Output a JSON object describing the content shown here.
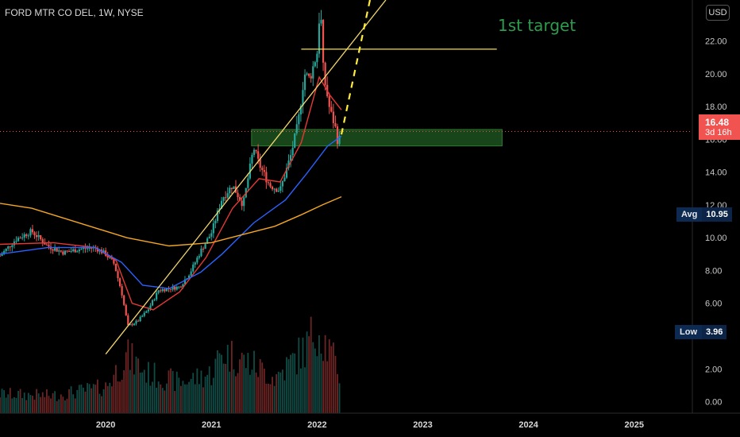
{
  "header": {
    "title": "FORD MTR CO DEL, 1W, NYSE",
    "currency_button": "USD"
  },
  "annotation": {
    "text": "1st target",
    "color": "#2e9b4e"
  },
  "price_tag": {
    "price": "16.48",
    "countdown": "3d 16h",
    "color": "#f05350"
  },
  "avg_tag": {
    "label": "Avg",
    "value": "10.95"
  },
  "low_tag": {
    "label": "Low",
    "value": "3.96"
  },
  "colors": {
    "up": "#26a69a",
    "down": "#ef5350",
    "ema_fast": "#e53935",
    "ema_mid": "#2962ff",
    "ema_slow": "#f5a623",
    "trendline": "#f5d76e",
    "target_line": "#f5e042",
    "zone": "#2e7d32"
  },
  "chart_data": {
    "type": "candlestick",
    "symbol": "FORD MTR CO DEL",
    "interval": "1W",
    "exchange": "NYSE",
    "yaxis": {
      "ticks": [
        "0.00",
        "2.00",
        "4.00",
        "6.00",
        "8.00",
        "10.00",
        "12.00",
        "14.00",
        "16.00",
        "18.00",
        "20.00",
        "22.00"
      ],
      "ylim": [
        -0.7,
        24.5
      ]
    },
    "xaxis": {
      "ticks": [
        "2020",
        "2021",
        "2022",
        "2023",
        "2024",
        "2025"
      ],
      "range": [
        2019.0,
        2025.55
      ]
    },
    "close_path": [
      [
        2019.0,
        8.9
      ],
      [
        2019.15,
        9.9
      ],
      [
        2019.3,
        10.4
      ],
      [
        2019.45,
        9.5
      ],
      [
        2019.6,
        9.1
      ],
      [
        2019.75,
        9.3
      ],
      [
        2019.9,
        9.4
      ],
      [
        2020.0,
        9.0
      ],
      [
        2020.08,
        8.4
      ],
      [
        2020.15,
        6.7
      ],
      [
        2020.21,
        4.6
      ],
      [
        2020.3,
        4.9
      ],
      [
        2020.4,
        5.6
      ],
      [
        2020.5,
        6.8
      ],
      [
        2020.6,
        6.9
      ],
      [
        2020.7,
        7.0
      ],
      [
        2020.8,
        7.9
      ],
      [
        2020.9,
        9.2
      ],
      [
        2021.0,
        10.3
      ],
      [
        2021.1,
        12.4
      ],
      [
        2021.2,
        13.2
      ],
      [
        2021.3,
        12.0
      ],
      [
        2021.4,
        15.5
      ],
      [
        2021.45,
        14.5
      ],
      [
        2021.55,
        13.2
      ],
      [
        2021.65,
        12.9
      ],
      [
        2021.75,
        15.0
      ],
      [
        2021.82,
        17.0
      ],
      [
        2021.88,
        20.0
      ],
      [
        2021.93,
        19.7
      ],
      [
        2022.0,
        21.3
      ],
      [
        2022.03,
        24.4
      ],
      [
        2022.06,
        20.0
      ],
      [
        2022.12,
        17.8
      ],
      [
        2022.17,
        16.8
      ],
      [
        2022.2,
        15.7
      ],
      [
        2022.23,
        16.48
      ]
    ],
    "volume_profile": [
      [
        2019.0,
        0.22
      ],
      [
        2019.5,
        0.2
      ],
      [
        2020.0,
        0.3
      ],
      [
        2020.2,
        0.65
      ],
      [
        2020.4,
        0.45
      ],
      [
        2020.7,
        0.35
      ],
      [
        2021.0,
        0.45
      ],
      [
        2021.1,
        0.7
      ],
      [
        2021.4,
        0.55
      ],
      [
        2021.6,
        0.4
      ],
      [
        2021.9,
        0.75
      ],
      [
        2022.0,
        1.0
      ],
      [
        2022.1,
        0.75
      ],
      [
        2022.23,
        0.4
      ]
    ],
    "series": [
      {
        "name": "",
        "type": "line",
        "role": "ema_fast",
        "points": [
          [
            2019.0,
            9.6
          ],
          [
            2019.5,
            9.7
          ],
          [
            2019.9,
            9.4
          ],
          [
            2020.1,
            8.6
          ],
          [
            2020.25,
            6.0
          ],
          [
            2020.45,
            5.6
          ],
          [
            2020.7,
            6.7
          ],
          [
            2020.95,
            8.8
          ],
          [
            2021.2,
            11.8
          ],
          [
            2021.45,
            13.6
          ],
          [
            2021.65,
            13.4
          ],
          [
            2021.85,
            15.8
          ],
          [
            2022.02,
            19.8
          ],
          [
            2022.12,
            18.7
          ],
          [
            2022.23,
            17.8
          ]
        ]
      },
      {
        "name": "",
        "type": "line",
        "role": "ema_mid",
        "points": [
          [
            2019.0,
            9.0
          ],
          [
            2019.45,
            9.4
          ],
          [
            2019.9,
            9.4
          ],
          [
            2020.15,
            8.5
          ],
          [
            2020.35,
            7.1
          ],
          [
            2020.6,
            6.9
          ],
          [
            2020.9,
            7.9
          ],
          [
            2021.1,
            9.0
          ],
          [
            2021.4,
            10.9
          ],
          [
            2021.7,
            12.3
          ],
          [
            2021.9,
            13.9
          ],
          [
            2022.1,
            15.6
          ],
          [
            2022.23,
            16.2
          ]
        ]
      },
      {
        "name": "",
        "type": "line",
        "role": "ema_slow",
        "points": [
          [
            2019.0,
            12.1
          ],
          [
            2019.3,
            11.8
          ],
          [
            2019.6,
            11.2
          ],
          [
            2019.9,
            10.6
          ],
          [
            2020.2,
            10.0
          ],
          [
            2020.6,
            9.5
          ],
          [
            2021.0,
            9.7
          ],
          [
            2021.3,
            10.2
          ],
          [
            2021.6,
            10.7
          ],
          [
            2021.85,
            11.4
          ],
          [
            2022.05,
            12.0
          ],
          [
            2022.23,
            12.5
          ]
        ]
      }
    ],
    "drawings": {
      "trendline": [
        [
          2020.0,
          2.9
        ],
        [
          2022.65,
          24.5
        ]
      ],
      "projection": [
        [
          2022.23,
          16.3
        ],
        [
          2022.5,
          24.5
        ]
      ],
      "target_level": {
        "value": 21.5,
        "x_range": [
          2021.85,
          2023.7
        ]
      },
      "support_zone": {
        "y_range": [
          15.6,
          16.6
        ],
        "x_range": [
          2021.38,
          2023.75
        ]
      },
      "current_price_line": 16.48
    }
  }
}
